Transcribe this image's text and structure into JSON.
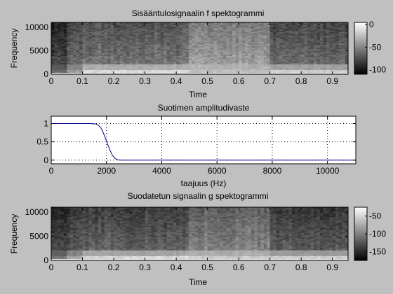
{
  "chart_data": [
    {
      "type": "heatmap",
      "title": "Sisääntulosignaalin f spektogrammi",
      "xlabel": "Time",
      "ylabel": "Frequency",
      "xlim": [
        0,
        0.95
      ],
      "ylim": [
        0,
        11025
      ],
      "xticks": [
        0,
        0.1,
        0.2,
        0.3,
        0.4,
        0.5,
        0.6,
        0.7,
        0.8,
        0.9
      ],
      "xtick_labels": [
        "0",
        "0.1",
        "0.2",
        "0.3",
        "0.4",
        "0.5",
        "0.6",
        "0.7",
        "0.8",
        "0.9"
      ],
      "yticks": [
        0,
        5000,
        10000
      ],
      "ytick_labels": [
        "0",
        "5000",
        "10000"
      ],
      "colormap": "gray",
      "colorbar": {
        "min": -110,
        "max": 5,
        "ticks": [
          0,
          -50,
          -100
        ],
        "tick_labels": [
          "0",
          "-50",
          "-100"
        ]
      },
      "segments": [
        {
          "t_start": 0.0,
          "t_end": 0.05,
          "level": 0.3,
          "low_band": 0.4
        },
        {
          "t_start": 0.05,
          "t_end": 0.1,
          "level": 0.42,
          "low_band": 0.6
        },
        {
          "t_start": 0.1,
          "t_end": 0.44,
          "level": 0.5,
          "low_band": 0.85
        },
        {
          "t_start": 0.44,
          "t_end": 0.7,
          "level": 0.66,
          "low_band": 0.75
        },
        {
          "t_start": 0.7,
          "t_end": 0.95,
          "level": 0.45,
          "low_band": 0.8
        }
      ]
    },
    {
      "type": "line",
      "title": "Suotimen amplitudivaste",
      "xlabel": "taajuus (Hz)",
      "ylabel": "",
      "xlim": [
        0,
        11025
      ],
      "ylim": [
        -0.1,
        1.2
      ],
      "grid": true,
      "xticks": [
        0,
        2000,
        4000,
        6000,
        8000,
        10000
      ],
      "xtick_labels": [
        "0",
        "2000",
        "4000",
        "6000",
        "8000",
        "10000"
      ],
      "yticks": [
        0,
        0.5,
        1
      ],
      "ytick_labels": [
        "0",
        "0.5",
        "1"
      ],
      "color": "#00008b",
      "x": [
        0,
        1000,
        1400,
        1600,
        1700,
        1800,
        1900,
        2000,
        2100,
        2200,
        2300,
        2400,
        2500,
        4000,
        6000,
        8000,
        10000,
        11025
      ],
      "y": [
        1.0,
        1.0,
        1.0,
        0.99,
        0.96,
        0.88,
        0.72,
        0.52,
        0.32,
        0.15,
        0.05,
        0.01,
        0.0,
        0.0,
        0.0,
        0.0,
        0.0,
        0.0
      ]
    },
    {
      "type": "heatmap",
      "title": "Suodatetun signaalin g spektogrammi",
      "xlabel": "Time",
      "ylabel": "Frequency",
      "xlim": [
        0,
        0.95
      ],
      "ylim": [
        0,
        11025
      ],
      "xticks": [
        0,
        0.1,
        0.2,
        0.3,
        0.4,
        0.5,
        0.6,
        0.7,
        0.8,
        0.9
      ],
      "xtick_labels": [
        "0",
        "0.1",
        "0.2",
        "0.3",
        "0.4",
        "0.5",
        "0.6",
        "0.7",
        "0.8",
        "0.9"
      ],
      "yticks": [
        0,
        5000,
        10000
      ],
      "ytick_labels": [
        "0",
        "5000",
        "10000"
      ],
      "colormap": "gray",
      "colorbar": {
        "min": -175,
        "max": -25,
        "ticks": [
          -50,
          -100,
          -150
        ],
        "tick_labels": [
          "-50",
          "-100",
          "-150"
        ]
      },
      "segments": [
        {
          "t_start": 0.0,
          "t_end": 0.05,
          "level": 0.3,
          "low_band": 0.45
        },
        {
          "t_start": 0.05,
          "t_end": 0.1,
          "level": 0.38,
          "low_band": 0.65
        },
        {
          "t_start": 0.1,
          "t_end": 0.44,
          "level": 0.42,
          "low_band": 0.85
        },
        {
          "t_start": 0.44,
          "t_end": 0.7,
          "level": 0.55,
          "low_band": 0.8
        },
        {
          "t_start": 0.7,
          "t_end": 0.95,
          "level": 0.4,
          "low_band": 0.8
        }
      ]
    }
  ]
}
